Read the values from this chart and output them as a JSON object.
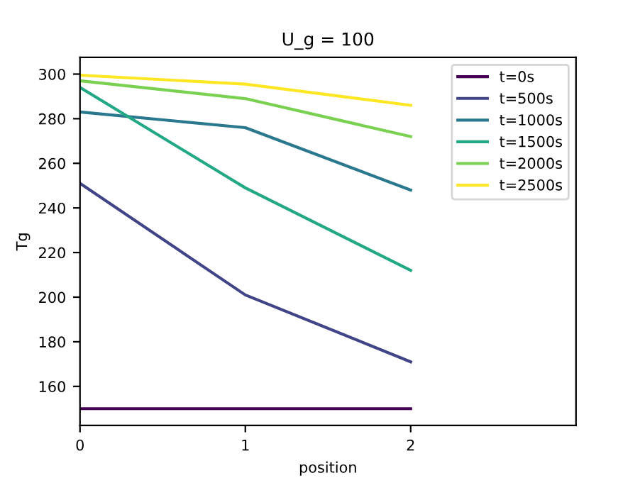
{
  "chart_data": {
    "type": "line",
    "title": "U_g = 100",
    "xlabel": "position",
    "ylabel": "Tg",
    "x": [
      0,
      1,
      2
    ],
    "series": [
      {
        "name": "t=0s",
        "color": "#440154",
        "values": [
          150,
          150,
          150
        ]
      },
      {
        "name": "t=500s",
        "color": "#414487",
        "values": [
          251,
          201,
          171
        ]
      },
      {
        "name": "t=1000s",
        "color": "#2a788e",
        "values": [
          283,
          276,
          248
        ]
      },
      {
        "name": "t=1500s",
        "color": "#22a884",
        "values": [
          294,
          249,
          212
        ]
      },
      {
        "name": "t=2000s",
        "color": "#7ad151",
        "values": [
          297,
          289,
          272
        ]
      },
      {
        "name": "t=2500s",
        "color": "#fde725",
        "values": [
          299.5,
          295.5,
          286
        ]
      }
    ],
    "xlim": [
      0,
      3
    ],
    "xticks": [
      0,
      1,
      2
    ],
    "ylim": [
      142.5,
      307.5
    ],
    "yticks": [
      160,
      180,
      200,
      220,
      240,
      260,
      280,
      300
    ],
    "grid": false,
    "legend": "top right",
    "marker": "none",
    "line_style": "solid"
  }
}
